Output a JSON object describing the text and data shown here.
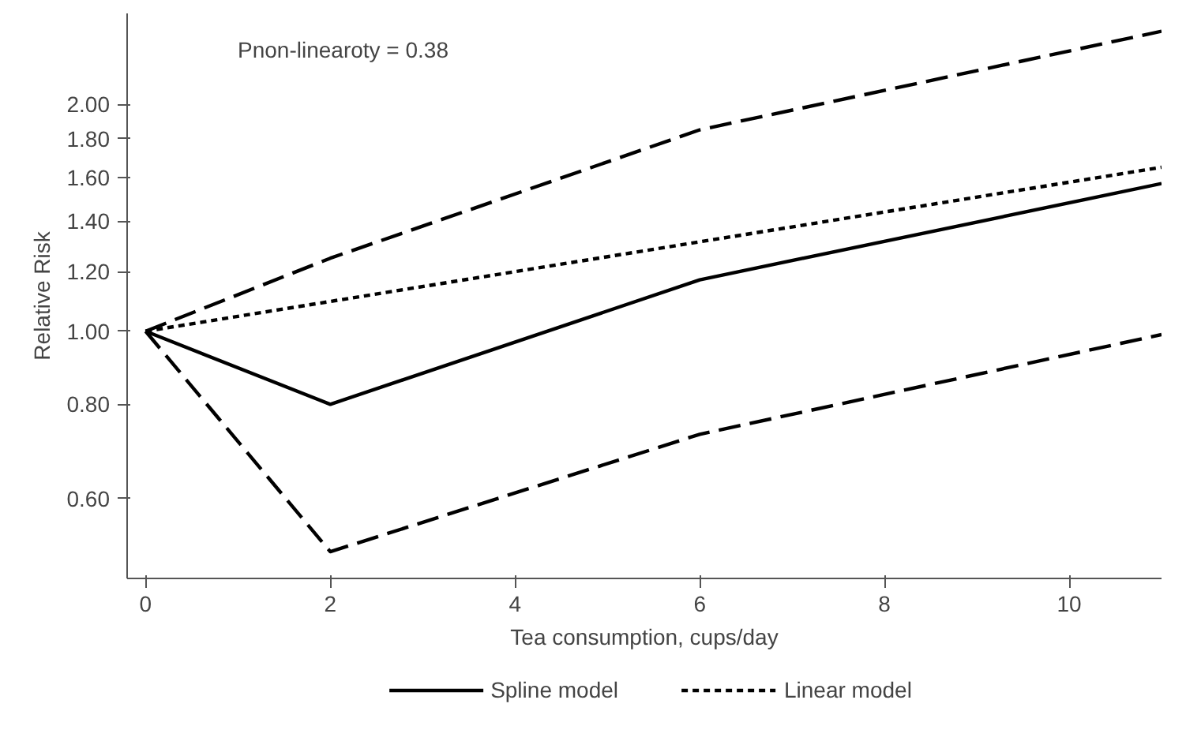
{
  "chart_data": {
    "type": "line",
    "xlabel": "Tea consumption, cups/day",
    "ylabel": "Relative Risk",
    "annotations": [
      "Pnon-linearoty = 0.38"
    ],
    "series": [
      {
        "name": "Spline model",
        "color": "#000000",
        "line_style": "solid",
        "x": [
          0,
          2,
          6,
          11
        ],
        "values": [
          1.0,
          0.8,
          1.17,
          1.57
        ]
      },
      {
        "name": "Linear model",
        "color": "#000000",
        "line_style": "dotted",
        "x": [
          0,
          11
        ],
        "values": [
          1.0,
          1.65
        ]
      },
      {
        "color": "#000000",
        "line_style": "dashed",
        "x": [
          0,
          2,
          6,
          11
        ],
        "values": [
          1.0,
          1.25,
          1.85,
          2.5
        ]
      },
      {
        "color": "#000000",
        "line_style": "dashed",
        "x": [
          0,
          2,
          6,
          11
        ],
        "values": [
          1.0,
          0.51,
          0.73,
          0.99
        ]
      }
    ],
    "log": "y",
    "xlim": [
      -0.2,
      11
    ],
    "ylim": [
      0.47,
      2.64
    ],
    "xticks": [
      0,
      2,
      4,
      6,
      8,
      10
    ],
    "yticks": [
      {
        "value": 0.6,
        "label": "0.60"
      },
      {
        "value": 0.8,
        "label": "0.80"
      },
      {
        "value": 1.0,
        "label": "1.00"
      },
      {
        "value": 1.2,
        "label": "1.20"
      },
      {
        "value": 1.4,
        "label": "1.40"
      },
      {
        "value": 1.6,
        "label": "1.60"
      },
      {
        "value": 1.8,
        "label": "1.80"
      },
      {
        "value": 2.0,
        "label": "2.00"
      }
    ],
    "grid": false,
    "legend": "bottom"
  }
}
